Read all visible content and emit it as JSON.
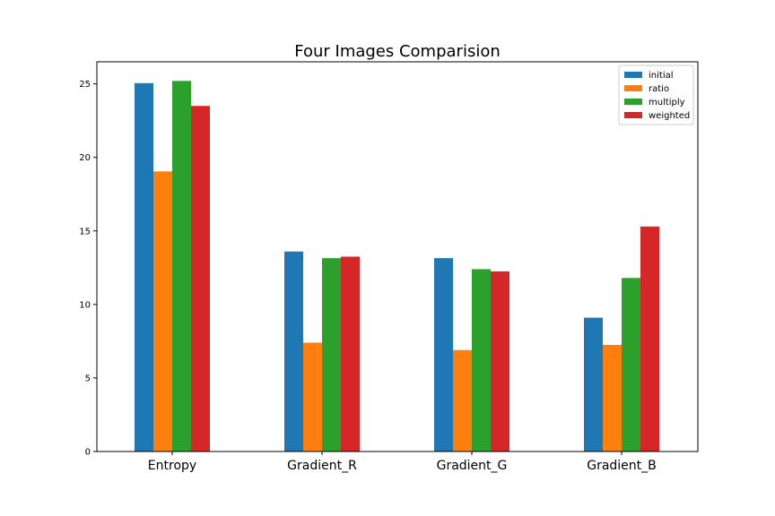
{
  "chart_data": {
    "type": "bar",
    "title": "Four Images Comparision",
    "xlabel": "",
    "ylabel": "",
    "categories": [
      "Entropy",
      "Gradient_R",
      "Gradient_G",
      "Gradient_B"
    ],
    "series": [
      {
        "name": "initial",
        "color": "#1f77b4",
        "values": [
          25.05,
          13.6,
          13.15,
          9.1
        ]
      },
      {
        "name": "ratio",
        "color": "#ff7f0e",
        "values": [
          19.05,
          7.4,
          6.9,
          7.25
        ]
      },
      {
        "name": "multiply",
        "color": "#2ca02c",
        "values": [
          25.2,
          13.15,
          12.4,
          11.8
        ]
      },
      {
        "name": "weighted",
        "color": "#d62728",
        "values": [
          23.5,
          13.25,
          12.25,
          15.3
        ]
      }
    ],
    "ylim": [
      0,
      26.5
    ],
    "yticks": [
      0,
      5,
      10,
      15,
      20,
      25
    ],
    "legend": "top-right",
    "grid": false
  }
}
